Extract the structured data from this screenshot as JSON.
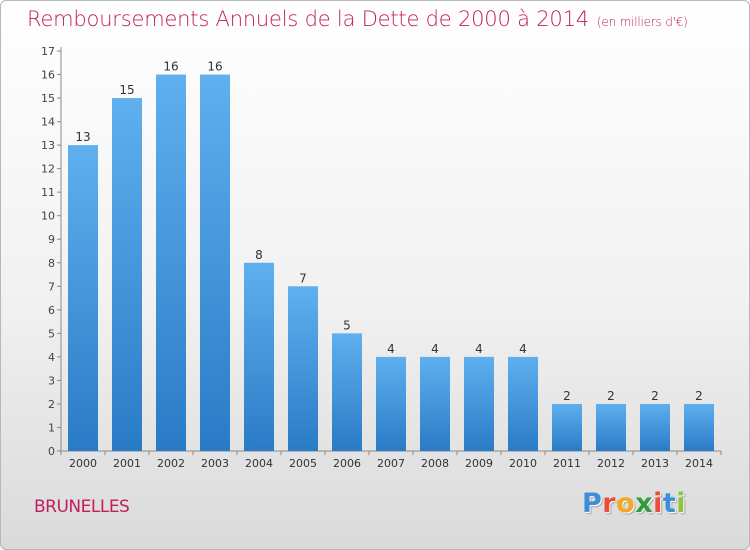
{
  "header": {
    "title": "Remboursements Annuels de la Dette de 2000 à 2014",
    "unit": "(en milliers d'€)"
  },
  "footer": {
    "town": "BRUNELLES",
    "logo_letters": [
      {
        "char": "P",
        "color": "#3b8fd6"
      },
      {
        "char": "r",
        "color": "#e94e3a"
      },
      {
        "char": "o",
        "color": "#f5a623"
      },
      {
        "char": "x",
        "color": "#2f9d3a"
      },
      {
        "char": "i",
        "color": "#e94e3a"
      },
      {
        "char": "t",
        "color": "#3b8fd6"
      },
      {
        "char": "i",
        "color": "#8cc63f"
      }
    ]
  },
  "chart_data": {
    "type": "bar",
    "categories": [
      "2000",
      "2001",
      "2002",
      "2003",
      "2004",
      "2005",
      "2006",
      "2007",
      "2008",
      "2009",
      "2010",
      "2011",
      "2012",
      "2013",
      "2014"
    ],
    "values": [
      13,
      15,
      16,
      16,
      8,
      7,
      5,
      4,
      4,
      4,
      4,
      2,
      2,
      2,
      2
    ],
    "title": "Remboursements Annuels de la Dette de 2000 à 2014",
    "xlabel": "",
    "ylabel": "",
    "ylim": [
      0,
      17
    ],
    "yticks": [
      0,
      1,
      2,
      3,
      4,
      5,
      6,
      7,
      8,
      9,
      10,
      11,
      12,
      13,
      14,
      15,
      16,
      17
    ],
    "grid": false,
    "data_labels": true,
    "bar_color": "#4d9de2"
  }
}
